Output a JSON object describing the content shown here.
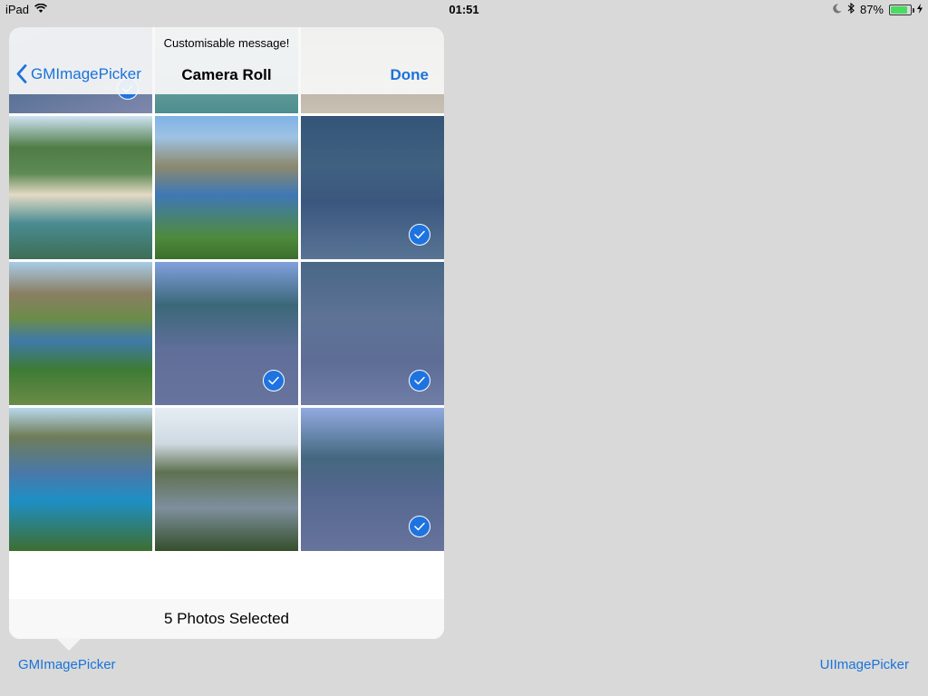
{
  "status_bar": {
    "device": "iPad",
    "time": "01:51",
    "battery": "87%",
    "battery_level": 0.87,
    "icons": [
      "wifi-icon",
      "moon-icon",
      "bluetooth-icon",
      "battery-icon",
      "charging-icon"
    ]
  },
  "picker": {
    "prompt": "Customisable message!",
    "title": "Camera Roll",
    "back_label": "GMImagePicker",
    "done_label": "Done",
    "selection_status": "5 Photos Selected",
    "photos": [
      {
        "subject": "pier walkway",
        "selected": true
      },
      {
        "subject": "beach shoreline",
        "selected": false
      },
      {
        "subject": "rocky pond",
        "selected": false
      },
      {
        "subject": "sandy cove",
        "selected": false
      },
      {
        "subject": "sea rocks inlet",
        "selected": false
      },
      {
        "subject": "forest stream",
        "selected": true
      },
      {
        "subject": "bay with trees",
        "selected": false
      },
      {
        "subject": "hikers on rock",
        "selected": true
      },
      {
        "subject": "group of hikers",
        "selected": true
      },
      {
        "subject": "coastal cliffs",
        "selected": false
      },
      {
        "subject": "mountain bay",
        "selected": false
      },
      {
        "subject": "hikers in forest",
        "selected": true
      }
    ]
  },
  "links": {
    "left": "GMImagePicker",
    "right": "UIImagePicker"
  },
  "colors": {
    "accent": "#1a73d9",
    "background": "#d9d9d9",
    "selection_tint": "#3c64d2"
  }
}
